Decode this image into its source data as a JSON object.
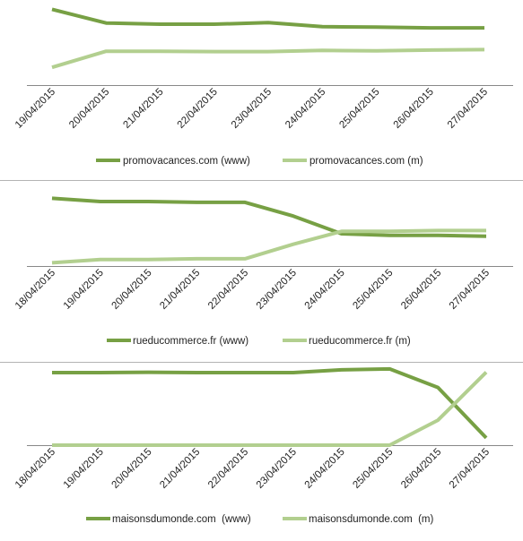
{
  "colors": {
    "www": "#77a044",
    "m": "#b2cf8f",
    "axis": "#888888",
    "separator": "#b4b4b4"
  },
  "chart_data": [
    {
      "type": "line",
      "x": [
        "19/04/2015",
        "20/04/2015",
        "21/04/2015",
        "22/04/2015",
        "23/04/2015",
        "24/04/2015",
        "25/04/2015",
        "26/04/2015",
        "27/04/2015"
      ],
      "series": [
        {
          "name": "promovacances.com (www)",
          "values": [
            0.94,
            0.77,
            0.755,
            0.755,
            0.775,
            0.725,
            0.72,
            0.71,
            0.71
          ]
        },
        {
          "name": "promovacances.com (m)",
          "values": [
            0.22,
            0.42,
            0.42,
            0.415,
            0.415,
            0.43,
            0.425,
            0.435,
            0.44
          ]
        }
      ],
      "ylim": [
        0,
        1
      ],
      "legend": "bottom",
      "grid": false
    },
    {
      "type": "line",
      "x": [
        "18/04/2015",
        "19/04/2015",
        "20/04/2015",
        "21/04/2015",
        "22/04/2015",
        "23/04/2015",
        "24/04/2015",
        "25/04/2015",
        "26/04/2015",
        "27/04/2015"
      ],
      "series": [
        {
          "name": "rueducommerce.fr (www)",
          "values": [
            0.84,
            0.8,
            0.8,
            0.79,
            0.79,
            0.62,
            0.4,
            0.38,
            0.38,
            0.37
          ]
        },
        {
          "name": "rueducommerce.fr (m)",
          "values": [
            0.04,
            0.08,
            0.08,
            0.09,
            0.09,
            0.27,
            0.43,
            0.43,
            0.44,
            0.44
          ]
        }
      ],
      "ylim": [
        0,
        1
      ],
      "legend": "bottom",
      "grid": false
    },
    {
      "type": "line",
      "x": [
        "18/04/2015",
        "19/04/2015",
        "20/04/2015",
        "21/04/2015",
        "22/04/2015",
        "23/04/2015",
        "24/04/2015",
        "25/04/2015",
        "26/04/2015",
        "27/04/2015"
      ],
      "series": [
        {
          "name": "maisonsdumonde.com  (www)",
          "values": [
            0.9,
            0.9,
            0.905,
            0.9,
            0.9,
            0.9,
            0.935,
            0.945,
            0.715,
            0.09
          ]
        },
        {
          "name": "maisonsdumonde.com  (m)",
          "values": [
            0.0,
            0.0,
            0.0,
            0.0,
            0.0,
            0.0,
            0.0,
            0.0,
            0.31,
            0.905
          ]
        }
      ],
      "ylim": [
        0,
        1
      ],
      "legend": "bottom",
      "grid": false
    }
  ]
}
